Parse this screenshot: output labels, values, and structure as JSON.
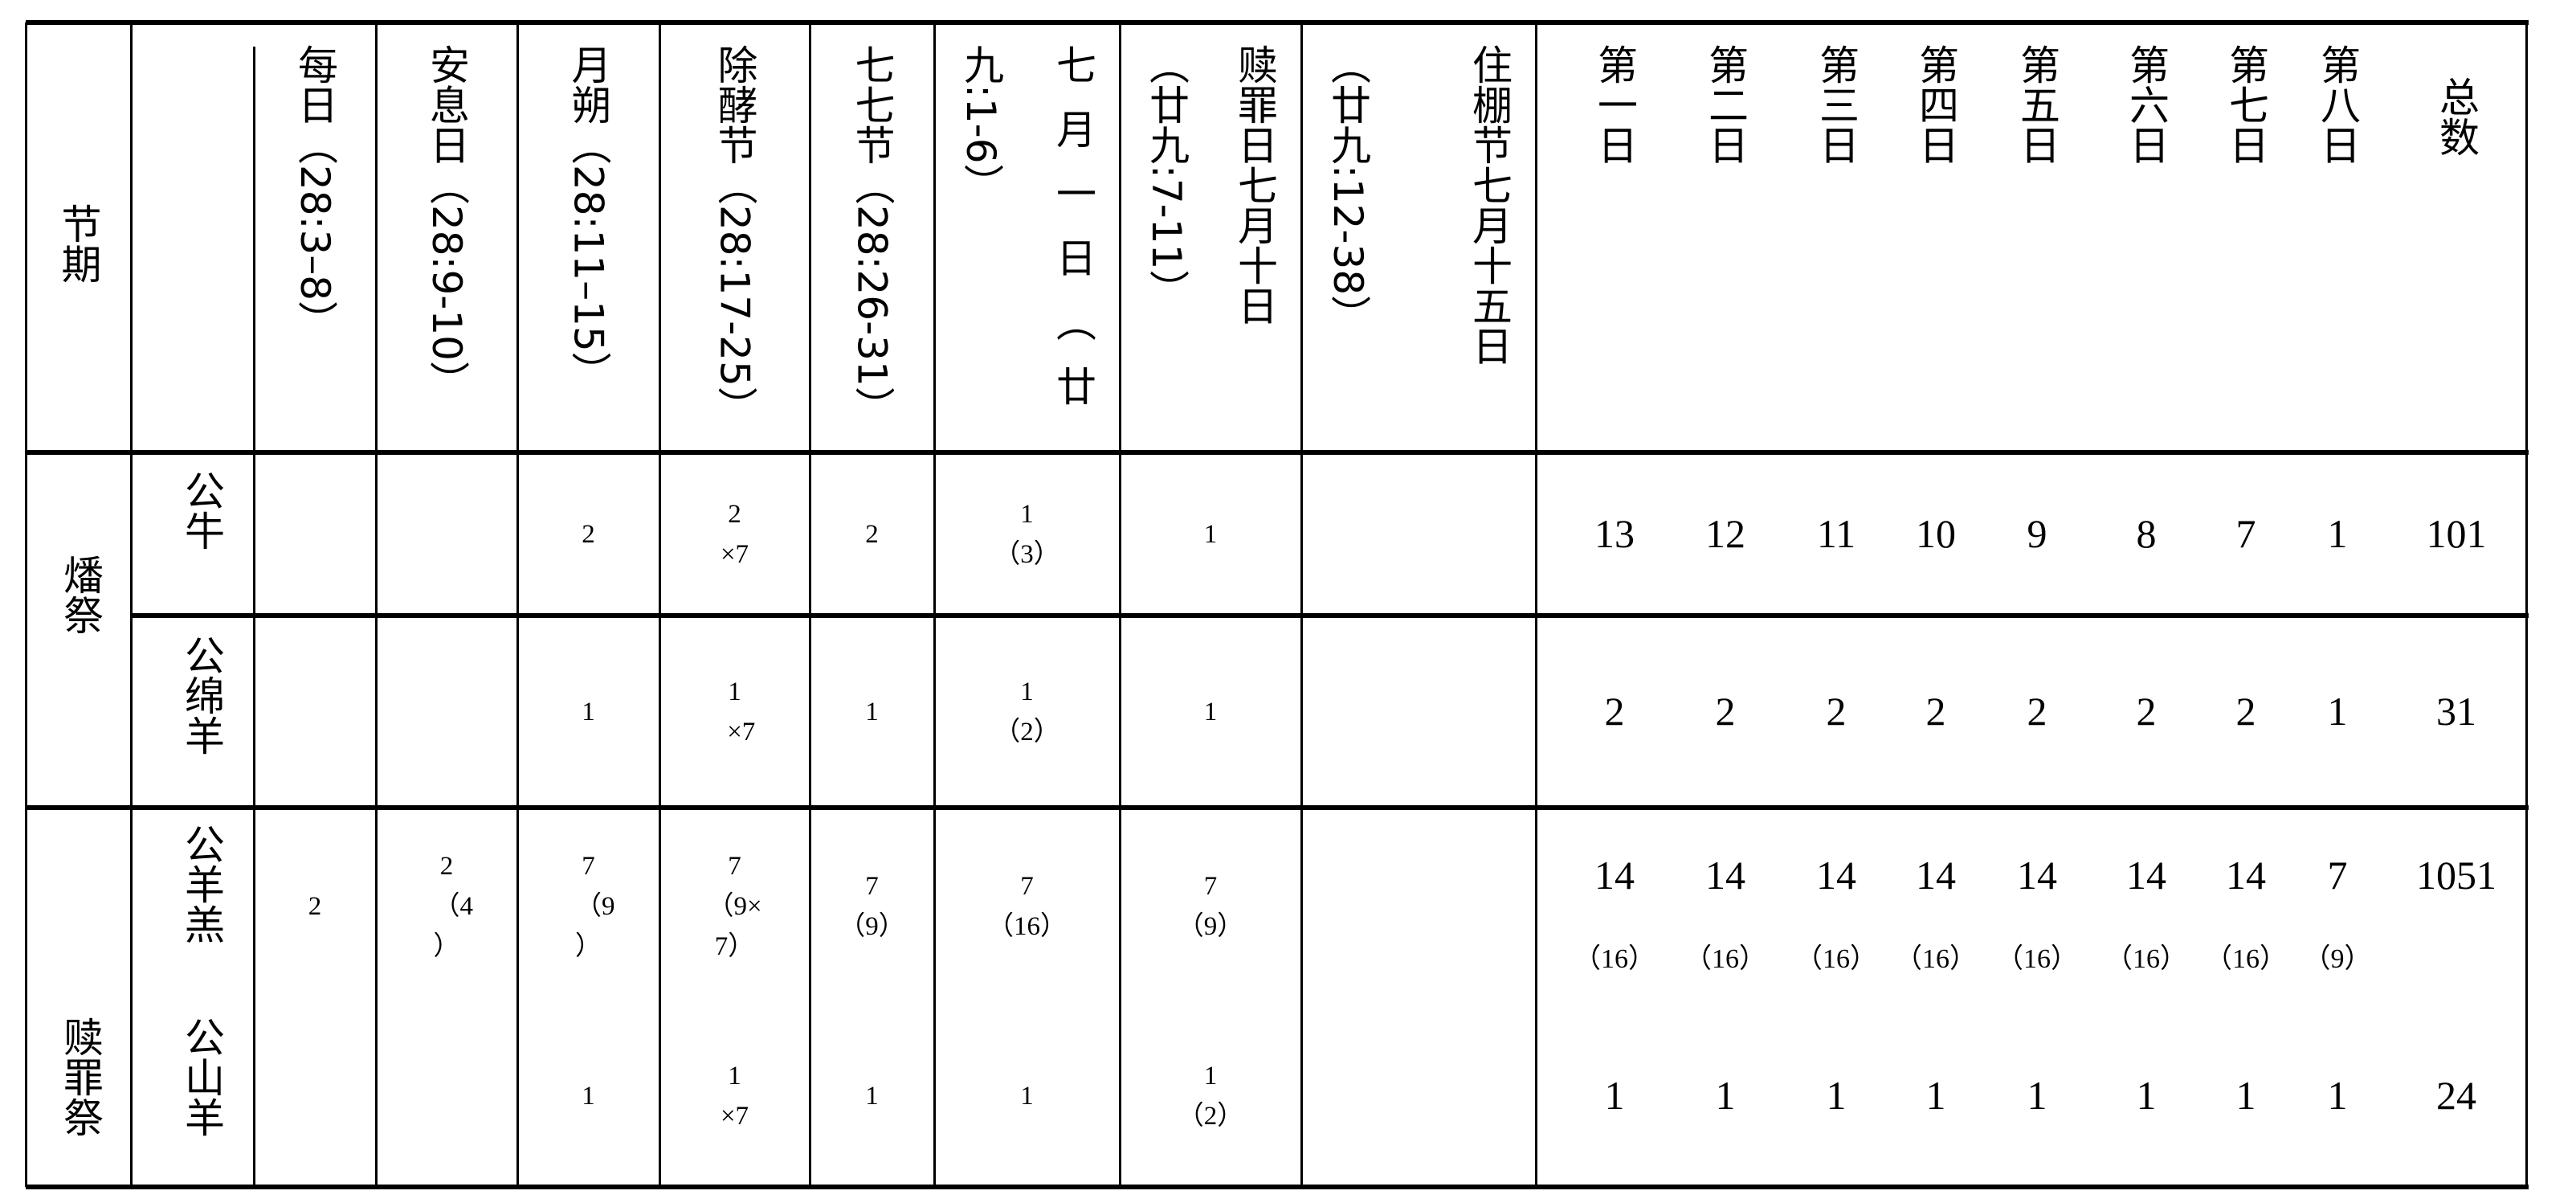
{
  "table": {
    "corner_header": "节期",
    "feast_headers": [
      {
        "lines": [
          "每日（28:3–8）"
        ]
      },
      {
        "lines": [
          "安息日（28:9-10）"
        ]
      },
      {
        "lines": [
          "月朔（28:11–15）"
        ]
      },
      {
        "lines": [
          "除酵节（28:17-25）"
        ]
      },
      {
        "lines": [
          "七七节（28:26-31）"
        ]
      },
      {
        "lines": [
          "七月一日（廿",
          "九:1-6）"
        ]
      },
      {
        "lines": [
          "赎罪日七月十日",
          "（廿九:7-11）"
        ]
      },
      {
        "lines": [
          "住棚节七月十五日",
          "（廿九:12-38）"
        ]
      }
    ],
    "day_headers": [
      "第一日",
      "第二日",
      "第三日",
      "第四日",
      "第五日",
      "第六日",
      "第七日",
      "第八日",
      "总数"
    ],
    "groups": [
      {
        "label": "燔祭"
      },
      {
        "label": "赎罪祭"
      }
    ],
    "rows": [
      {
        "label": "公牛",
        "cells": [
          "",
          "",
          "2",
          "2\n×7",
          "2",
          "1\n（3）",
          "1",
          ""
        ],
        "days": [
          "13",
          "12",
          "11",
          "10",
          "9",
          "8",
          "7",
          "1",
          "101"
        ],
        "days_sub": []
      },
      {
        "label": "公绵羊",
        "cells": [
          "",
          "",
          "1",
          "1\n  ×7",
          "1",
          "1\n（2）",
          "1",
          ""
        ],
        "days": [
          "2",
          "2",
          "2",
          "2",
          "2",
          "2",
          "2",
          "1",
          "31"
        ],
        "days_sub": []
      },
      {
        "label": "公羊羔",
        "cells": [
          "2",
          "2\n  （4\n）",
          "7\n  （9\n）",
          "7\n（9×\n7）",
          "7\n（9）",
          "7\n（16）",
          "7\n（9）",
          ""
        ],
        "days": [
          "14",
          "14",
          "14",
          "14",
          "14",
          "14",
          "14",
          "7",
          "1051"
        ],
        "days_sub": [
          "（16）",
          "（16）",
          "（16）",
          "（16）",
          "（16）",
          "（16）",
          "（16）",
          "（9）"
        ]
      },
      {
        "label": "公山羊",
        "cells": [
          "",
          "",
          "1",
          "1\n×7",
          "1",
          "1",
          "1\n（2）",
          ""
        ],
        "days": [
          "1",
          "1",
          "1",
          "1",
          "1",
          "1",
          "1",
          "1",
          "24"
        ],
        "days_sub": []
      }
    ]
  }
}
